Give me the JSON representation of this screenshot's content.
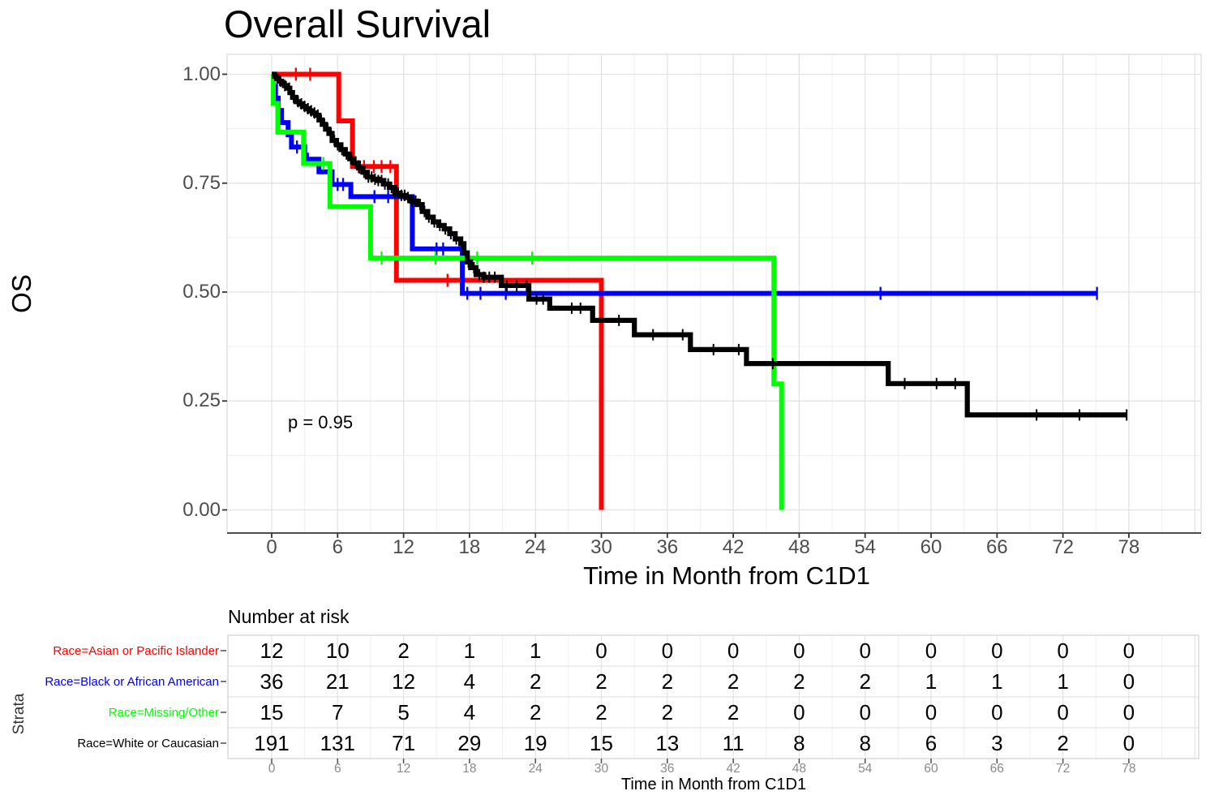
{
  "chart_data": [
    {
      "type": "line",
      "subtype": "kaplan-meier-survival",
      "title": "Overall Survival",
      "xlabel": "Time in Month from C1D1",
      "ylabel": "OS",
      "xlim": [
        -1.8,
        84.6
      ],
      "ylim": [
        -0.055,
        1.055
      ],
      "x_ticks": [
        "0",
        "6",
        "12",
        "18",
        "24",
        "30",
        "36",
        "42",
        "48",
        "54",
        "60",
        "66",
        "72",
        "78"
      ],
      "x_tick_values": [
        0,
        6,
        12,
        18,
        24,
        30,
        36,
        42,
        48,
        54,
        60,
        66,
        72,
        78
      ],
      "y_ticks": [
        "1.00",
        "0.75",
        "0.50",
        "0.25",
        "0.00"
      ],
      "y_tick_values": [
        1.0,
        0.75,
        0.5,
        0.25,
        0.0
      ],
      "grid": {
        "major": true,
        "minor": true,
        "minor_x_step": 3,
        "minor_y_step": 0.125
      },
      "legend_position": "none",
      "annotation": {
        "text": "p = 0.95",
        "x": 1.5,
        "y": 0.21
      },
      "series": [
        {
          "name": "Race=Asian or Pacific Islander",
          "color": "#FF0000",
          "steps": [
            [
              0,
              1.0
            ],
            [
              6.1,
              0.893
            ],
            [
              7.35,
              0.788
            ],
            [
              11.35,
              0.527
            ],
            [
              30,
              0.0
            ]
          ],
          "end": 30,
          "censors": [
            2.2,
            3.5,
            7.9,
            8.4,
            9.3,
            10.0,
            10.8,
            16.0
          ]
        },
        {
          "name": "Race=Black or African American",
          "color": "#0000FF",
          "steps": [
            [
              0,
              1.0
            ],
            [
              0.15,
              0.972
            ],
            [
              0.35,
              0.945
            ],
            [
              0.6,
              0.917
            ],
            [
              0.9,
              0.889
            ],
            [
              1.5,
              0.861
            ],
            [
              1.8,
              0.833
            ],
            [
              3.0,
              0.805
            ],
            [
              4.3,
              0.776
            ],
            [
              5.5,
              0.747
            ],
            [
              7.2,
              0.719
            ],
            [
              12.8,
              0.599
            ],
            [
              17.35,
              0.497
            ]
          ],
          "end": 75.1,
          "censors": [
            2.3,
            3.3,
            6.0,
            6.5,
            9.35,
            10.6,
            15.0,
            15.6,
            17.8,
            19.0,
            21.3,
            55.4,
            75.1
          ]
        },
        {
          "name": "Race=Missing/Other",
          "color": "#00FF00",
          "steps": [
            [
              0,
              1.0
            ],
            [
              0.15,
              0.933
            ],
            [
              0.55,
              0.867
            ],
            [
              2.9,
              0.795
            ],
            [
              5.3,
              0.696
            ],
            [
              9.0,
              0.578
            ],
            [
              45.7,
              0.289
            ],
            [
              46.4,
              0.0
            ]
          ],
          "end": 46.4,
          "censors": [
            4.7,
            10.0,
            14.9,
            18.7,
            23.7
          ]
        },
        {
          "name": "Race=White or Caucasian",
          "color": "#000000",
          "steps": [
            [
              0,
              1.0
            ],
            [
              0.25,
              0.995
            ],
            [
              0.45,
              0.99
            ],
            [
              0.65,
              0.984
            ],
            [
              0.9,
              0.979
            ],
            [
              1.15,
              0.974
            ],
            [
              1.4,
              0.968
            ],
            [
              1.65,
              0.958
            ],
            [
              1.9,
              0.947
            ],
            [
              2.2,
              0.937
            ],
            [
              2.5,
              0.932
            ],
            [
              2.8,
              0.926
            ],
            [
              3.1,
              0.921
            ],
            [
              3.4,
              0.916
            ],
            [
              3.7,
              0.911
            ],
            [
              4.0,
              0.906
            ],
            [
              4.3,
              0.895
            ],
            [
              4.6,
              0.885
            ],
            [
              4.9,
              0.874
            ],
            [
              5.2,
              0.864
            ],
            [
              5.5,
              0.848
            ],
            [
              5.9,
              0.838
            ],
            [
              6.3,
              0.827
            ],
            [
              6.7,
              0.817
            ],
            [
              7.1,
              0.806
            ],
            [
              7.5,
              0.796
            ],
            [
              7.9,
              0.785
            ],
            [
              8.3,
              0.775
            ],
            [
              8.7,
              0.764
            ],
            [
              9.2,
              0.759
            ],
            [
              9.7,
              0.756
            ],
            [
              10.2,
              0.748
            ],
            [
              10.7,
              0.74
            ],
            [
              11.2,
              0.727
            ],
            [
              11.7,
              0.722
            ],
            [
              12.2,
              0.717
            ],
            [
              12.7,
              0.709
            ],
            [
              13.2,
              0.701
            ],
            [
              13.7,
              0.685
            ],
            [
              14.2,
              0.672
            ],
            [
              14.7,
              0.661
            ],
            [
              15.2,
              0.653
            ],
            [
              15.7,
              0.645
            ],
            [
              16.2,
              0.634
            ],
            [
              16.7,
              0.622
            ],
            [
              17.2,
              0.611
            ],
            [
              17.5,
              0.59
            ],
            [
              17.8,
              0.569
            ],
            [
              18.1,
              0.556
            ],
            [
              18.6,
              0.54
            ],
            [
              19.3,
              0.534
            ],
            [
              20.9,
              0.515
            ],
            [
              23.4,
              0.484
            ],
            [
              25.3,
              0.463
            ],
            [
              29.2,
              0.435
            ],
            [
              33.0,
              0.402
            ],
            [
              38.1,
              0.368
            ],
            [
              43.2,
              0.336
            ],
            [
              56.1,
              0.29
            ],
            [
              63.3,
              0.218
            ]
          ],
          "end": 77.8,
          "censors": [
            0.8,
            1.2,
            1.6,
            2.0,
            2.4,
            2.7,
            3.0,
            3.3,
            3.6,
            3.9,
            4.2,
            4.5,
            4.8,
            5.1,
            5.4,
            5.7,
            6.0,
            6.4,
            6.8,
            7.2,
            7.6,
            8.0,
            8.4,
            8.8,
            9.1,
            9.4,
            9.7,
            10.0,
            10.3,
            10.6,
            10.9,
            11.2,
            11.5,
            11.8,
            12.1,
            12.4,
            12.8,
            13.1,
            13.5,
            13.9,
            14.3,
            14.8,
            15.3,
            15.8,
            16.3,
            16.8,
            17.3,
            17.9,
            18.4,
            18.9,
            19.3,
            19.8,
            20.3,
            21.4,
            22.3,
            23.2,
            24.1,
            24.7,
            27.3,
            28.1,
            31.6,
            34.7,
            37.4,
            40.2,
            42.5,
            45.6,
            57.6,
            60.5,
            62.2,
            69.6,
            73.5,
            77.8
          ]
        }
      ]
    },
    {
      "type": "table",
      "title": "Number at risk",
      "ylabel": "Strata",
      "xlabel": "Time in Month from C1D1",
      "x_ticks": [
        "0",
        "6",
        "12",
        "18",
        "24",
        "30",
        "36",
        "42",
        "48",
        "54",
        "60",
        "66",
        "72",
        "78"
      ],
      "x_tick_values": [
        0,
        6,
        12,
        18,
        24,
        30,
        36,
        42,
        48,
        54,
        60,
        66,
        72,
        78
      ],
      "rows": [
        {
          "label": "Race=Asian or Pacific Islander",
          "color": "#FF0000",
          "counts": [
            12,
            10,
            2,
            1,
            1,
            0,
            0,
            0,
            0,
            0,
            0,
            0,
            0,
            0
          ]
        },
        {
          "label": "Race=Black or African American",
          "color": "#0000FF",
          "counts": [
            36,
            21,
            12,
            4,
            2,
            2,
            2,
            2,
            2,
            2,
            1,
            1,
            1,
            0
          ]
        },
        {
          "label": "Race=Missing/Other",
          "color": "#00FF00",
          "counts": [
            15,
            7,
            5,
            4,
            2,
            2,
            2,
            2,
            0,
            0,
            0,
            0,
            0,
            0
          ]
        },
        {
          "label": "Race=White or Caucasian",
          "color": "#000000",
          "counts": [
            191,
            131,
            71,
            29,
            19,
            15,
            13,
            11,
            8,
            8,
            6,
            3,
            2,
            0
          ]
        }
      ]
    }
  ]
}
